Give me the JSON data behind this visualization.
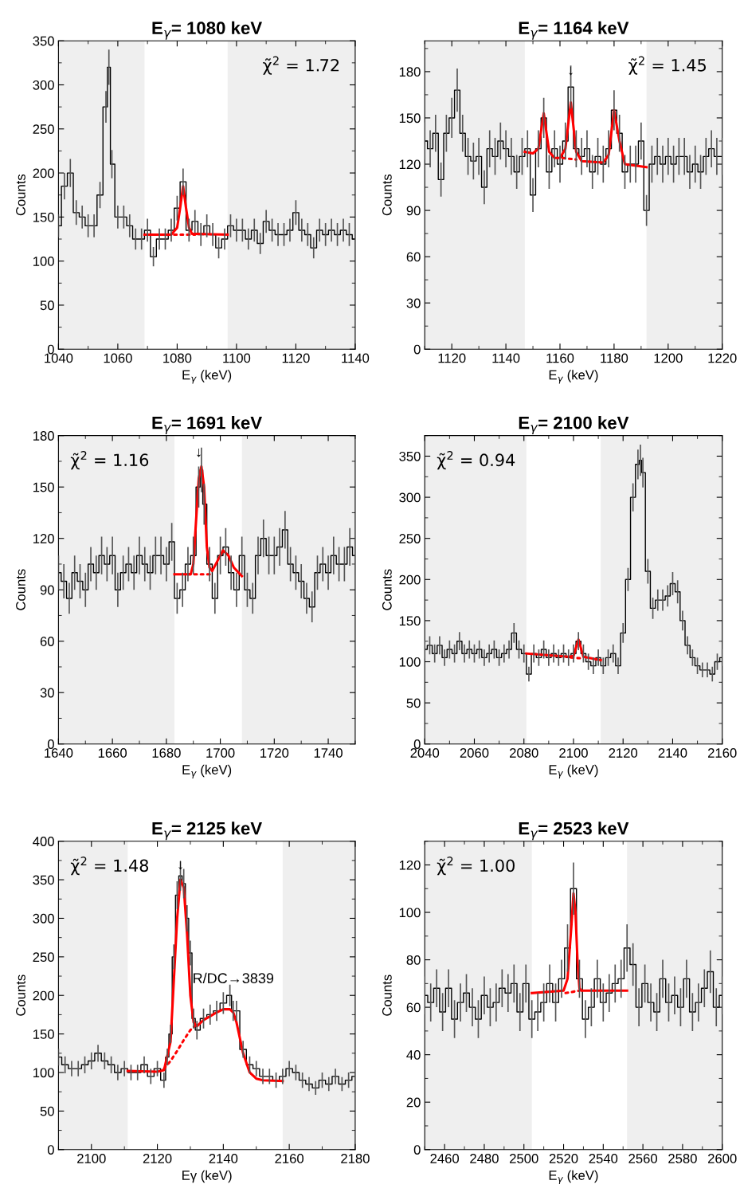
{
  "chart_data": [
    {
      "type": "step",
      "title": "E$_{γ}$= 1080 keV",
      "xlabel": "E$_{γ}$ (keV)",
      "ylabel": "Counts",
      "xlim": [
        1040,
        1140
      ],
      "ylim": [
        0,
        350
      ],
      "xticks": [
        1040,
        1060,
        1080,
        1100,
        1120,
        1140
      ],
      "yticks": [
        0,
        50,
        100,
        150,
        200,
        250,
        300,
        350
      ],
      "bands": [
        {
          "axis": "x",
          "from": 1040,
          "to": 1069,
          "color": "#efefef"
        },
        {
          "axis": "x",
          "from": 1097,
          "to": 1140,
          "color": "#efefef"
        }
      ],
      "annotations": [
        "χ̃$^{2}$ = 1.72"
      ],
      "series": [
        {
          "color": "#000000",
          "x": [
            1040,
            1042,
            1044,
            1046,
            1048,
            1050,
            1052,
            1054,
            1056,
            1057,
            1058,
            1060,
            1062,
            1064,
            1066,
            1068,
            1070,
            1072,
            1074,
            1076,
            1078,
            1080,
            1082,
            1084,
            1086,
            1088,
            1090,
            1092,
            1094,
            1096,
            1098,
            1100,
            1102,
            1104,
            1106,
            1108,
            1110,
            1112,
            1114,
            1116,
            1118,
            1120,
            1122,
            1124,
            1126,
            1128,
            1130,
            1132,
            1134,
            1136,
            1138,
            1140
          ],
          "values": [
            140,
            185,
            200,
            155,
            150,
            140,
            140,
            175,
            275,
            320,
            210,
            150,
            150,
            140,
            125,
            125,
            135,
            105,
            125,
            125,
            135,
            160,
            190,
            135,
            145,
            130,
            140,
            130,
            115,
            125,
            140,
            135,
            135,
            125,
            135,
            120,
            145,
            135,
            130,
            130,
            135,
            155,
            135,
            130,
            115,
            135,
            130,
            135,
            130,
            135,
            130,
            125
          ],
          "errors": [
            13,
            15,
            16,
            14,
            13,
            13,
            13,
            15,
            18,
            20,
            16,
            13,
            13,
            13,
            12,
            12,
            13,
            11,
            12,
            12,
            13,
            14,
            15,
            13,
            13,
            13,
            13,
            13,
            12,
            12,
            13,
            13,
            13,
            12,
            13,
            12,
            13,
            13,
            13,
            13,
            13,
            14,
            13,
            13,
            12,
            13,
            13,
            13,
            13,
            13,
            13,
            12
          ]
        },
        {
          "type": "line",
          "color": "#ff0000",
          "x": [
            1069,
            1078,
            1080,
            1081,
            1082,
            1083,
            1084,
            1085,
            1097
          ],
          "values": [
            130,
            130,
            138,
            160,
            185,
            160,
            138,
            131,
            130
          ]
        },
        {
          "type": "line",
          "color": "#ff0000",
          "line_style": "dotted",
          "x": [
            1079,
            1086
          ],
          "values": [
            130,
            130
          ]
        }
      ]
    },
    {
      "type": "step",
      "title": "E$_{γ}$= 1164 keV",
      "xlabel": "E$_{γ}$ (keV)",
      "ylabel": "Counts",
      "xlim": [
        1110,
        1220
      ],
      "ylim": [
        0,
        200
      ],
      "xticks": [
        1120,
        1140,
        1160,
        1180,
        1200,
        1220
      ],
      "yticks": [
        0,
        30,
        60,
        90,
        120,
        150,
        180
      ],
      "bands": [
        {
          "axis": "x",
          "from": 1110,
          "to": 1147,
          "color": "#efefef"
        },
        {
          "axis": "x",
          "from": 1192,
          "to": 1220,
          "color": "#efefef"
        }
      ],
      "annotations": [
        "χ̃$^{2}$ = 1.45",
        {
          "text": "↓",
          "x": 1164,
          "y": 176
        }
      ],
      "series": [
        {
          "color": "#000000",
          "x": [
            1110,
            1112,
            1114,
            1116,
            1118,
            1120,
            1122,
            1124,
            1126,
            1128,
            1130,
            1132,
            1134,
            1136,
            1138,
            1140,
            1142,
            1144,
            1146,
            1148,
            1150,
            1152,
            1154,
            1156,
            1158,
            1160,
            1162,
            1164,
            1166,
            1168,
            1170,
            1172,
            1174,
            1176,
            1178,
            1180,
            1182,
            1184,
            1186,
            1188,
            1190,
            1192,
            1194,
            1196,
            1198,
            1200,
            1202,
            1204,
            1206,
            1208,
            1210,
            1212,
            1214,
            1216,
            1218,
            1220
          ],
          "values": [
            135,
            130,
            140,
            110,
            140,
            150,
            168,
            140,
            125,
            122,
            125,
            105,
            130,
            125,
            135,
            130,
            125,
            115,
            125,
            130,
            100,
            130,
            150,
            115,
            130,
            120,
            135,
            170,
            130,
            125,
            130,
            115,
            125,
            120,
            130,
            155,
            140,
            115,
            120,
            120,
            135,
            90,
            120,
            125,
            120,
            125,
            120,
            125,
            125,
            115,
            120,
            115,
            125,
            130,
            125,
            125
          ],
          "errors": [
            12,
            12,
            12,
            11,
            12,
            13,
            14,
            12,
            12,
            12,
            12,
            11,
            12,
            12,
            12,
            12,
            12,
            11,
            12,
            12,
            11,
            12,
            13,
            11,
            12,
            12,
            12,
            14,
            12,
            12,
            12,
            11,
            12,
            12,
            12,
            13,
            12,
            11,
            12,
            12,
            12,
            10,
            12,
            12,
            12,
            12,
            12,
            12,
            12,
            11,
            12,
            11,
            12,
            12,
            12,
            12
          ]
        },
        {
          "type": "line",
          "color": "#ff0000",
          "x": [
            1147,
            1150,
            1152,
            1154,
            1156,
            1158,
            1160,
            1162,
            1164,
            1166,
            1168,
            1176,
            1178,
            1180,
            1182,
            1184,
            1192
          ],
          "values": [
            128,
            127,
            130,
            153,
            128,
            124,
            124,
            130,
            160,
            128,
            122,
            121,
            126,
            155,
            135,
            120,
            118
          ]
        },
        {
          "type": "line",
          "color": "#ff0000",
          "line_style": "dotted",
          "x": [
            1161,
            1166
          ],
          "values": [
            124,
            123
          ]
        }
      ]
    },
    {
      "type": "step",
      "title": "E$_{γ}$= 1691 keV",
      "xlabel": "E$_{γ}$ (keV)",
      "ylabel": "Counts",
      "xlim": [
        1640,
        1750
      ],
      "ylim": [
        0,
        180
      ],
      "xticks": [
        1640,
        1660,
        1680,
        1700,
        1720,
        1740
      ],
      "yticks": [
        0,
        30,
        60,
        90,
        120,
        150,
        180
      ],
      "bands": [
        {
          "axis": "x",
          "from": 1640,
          "to": 1683,
          "color": "#efefef"
        },
        {
          "axis": "x",
          "from": 1708,
          "to": 1750,
          "color": "#efefef"
        }
      ],
      "annotations": [
        "χ̃$^{2}$ = 1.16",
        {
          "text": "↓",
          "x": 1692,
          "y": 166
        }
      ],
      "series": [
        {
          "color": "#000000",
          "x": [
            1640,
            1642,
            1644,
            1646,
            1648,
            1650,
            1652,
            1654,
            1656,
            1658,
            1660,
            1662,
            1664,
            1666,
            1668,
            1670,
            1672,
            1674,
            1676,
            1678,
            1680,
            1682,
            1684,
            1686,
            1688,
            1690,
            1692,
            1693,
            1694,
            1696,
            1698,
            1700,
            1702,
            1704,
            1706,
            1708,
            1710,
            1712,
            1714,
            1716,
            1718,
            1720,
            1722,
            1724,
            1726,
            1728,
            1730,
            1732,
            1734,
            1736,
            1738,
            1740,
            1742,
            1744,
            1746,
            1748,
            1750
          ],
          "values": [
            100,
            95,
            85,
            100,
            95,
            90,
            105,
            100,
            110,
            105,
            110,
            90,
            100,
            105,
            100,
            110,
            105,
            100,
            110,
            110,
            105,
            118,
            85,
            90,
            105,
            110,
            150,
            160,
            140,
            105,
            85,
            110,
            115,
            100,
            90,
            110,
            90,
            85,
            110,
            120,
            110,
            110,
            115,
            125,
            105,
            100,
            95,
            85,
            80,
            100,
            105,
            100,
            110,
            105,
            105,
            115,
            110
          ],
          "errors": [
            10,
            10,
            9,
            10,
            10,
            10,
            10,
            10,
            11,
            10,
            11,
            10,
            10,
            10,
            10,
            11,
            10,
            10,
            11,
            11,
            10,
            11,
            9,
            10,
            10,
            11,
            12,
            13,
            12,
            10,
            9,
            11,
            11,
            10,
            10,
            11,
            10,
            9,
            11,
            11,
            11,
            11,
            11,
            11,
            10,
            10,
            10,
            9,
            9,
            10,
            10,
            10,
            11,
            10,
            10,
            11,
            11
          ]
        },
        {
          "type": "line",
          "color": "#ff0000",
          "x": [
            1683,
            1689,
            1690,
            1691,
            1692,
            1693,
            1694,
            1695,
            1696,
            1697,
            1699,
            1701,
            1703,
            1705,
            1708
          ],
          "values": [
            99,
            99,
            105,
            130,
            155,
            162,
            150,
            115,
            103,
            101,
            107,
            113,
            110,
            103,
            98
          ]
        },
        {
          "type": "line",
          "color": "#ff0000",
          "line_style": "dotted",
          "x": [
            1688,
            1697
          ],
          "values": [
            99,
            99
          ]
        }
      ]
    },
    {
      "type": "step",
      "title": "E$_{γ}$= 2100 keV",
      "xlabel": "E$_{γ}$ (keV)",
      "ylabel": "Counts",
      "xlim": [
        2040,
        2160
      ],
      "ylim": [
        0,
        375
      ],
      "xticks": [
        2040,
        2060,
        2080,
        2100,
        2120,
        2140,
        2160
      ],
      "yticks": [
        0,
        50,
        100,
        150,
        200,
        250,
        300,
        350
      ],
      "bands": [
        {
          "axis": "x",
          "from": 2040,
          "to": 2081,
          "color": "#efefef"
        },
        {
          "axis": "x",
          "from": 2111,
          "to": 2160,
          "color": "#efefef"
        }
      ],
      "annotations": [
        "χ̃$^{2}$ = 0.94"
      ],
      "series": [
        {
          "color": "#000000",
          "x": [
            2040,
            2042,
            2044,
            2046,
            2048,
            2050,
            2052,
            2054,
            2056,
            2058,
            2060,
            2062,
            2064,
            2066,
            2068,
            2070,
            2072,
            2074,
            2076,
            2078,
            2080,
            2082,
            2084,
            2086,
            2088,
            2090,
            2092,
            2094,
            2096,
            2098,
            2100,
            2102,
            2104,
            2106,
            2108,
            2110,
            2112,
            2114,
            2116,
            2118,
            2120,
            2122,
            2124,
            2126,
            2127,
            2128,
            2130,
            2132,
            2134,
            2136,
            2138,
            2140,
            2142,
            2144,
            2146,
            2148,
            2150,
            2152,
            2154,
            2156,
            2158,
            2160
          ],
          "values": [
            115,
            120,
            110,
            120,
            105,
            115,
            110,
            125,
            110,
            115,
            110,
            115,
            105,
            110,
            115,
            105,
            110,
            115,
            135,
            115,
            110,
            85,
            110,
            105,
            115,
            105,
            110,
            105,
            110,
            105,
            110,
            125,
            110,
            100,
            95,
            105,
            95,
            105,
            110,
            95,
            135,
            200,
            300,
            340,
            345,
            330,
            210,
            165,
            175,
            175,
            180,
            195,
            185,
            150,
            120,
            105,
            95,
            90,
            90,
            85,
            100,
            105
          ],
          "errors": [
            11,
            11,
            11,
            11,
            10,
            11,
            11,
            11,
            11,
            11,
            11,
            11,
            10,
            11,
            11,
            10,
            11,
            11,
            12,
            11,
            11,
            9,
            11,
            10,
            11,
            10,
            11,
            10,
            11,
            10,
            11,
            11,
            11,
            10,
            10,
            10,
            10,
            10,
            11,
            10,
            12,
            14,
            17,
            18,
            19,
            18,
            15,
            13,
            13,
            13,
            13,
            14,
            14,
            12,
            11,
            10,
            10,
            9,
            9,
            9,
            10,
            10
          ]
        },
        {
          "type": "line",
          "color": "#ff0000",
          "x": [
            2081,
            2098,
            2100,
            2102,
            2104,
            2111
          ],
          "values": [
            110,
            106,
            107,
            127,
            106,
            102
          ]
        },
        {
          "type": "line",
          "color": "#ff0000",
          "line_style": "dotted",
          "x": [
            2099,
            2104
          ],
          "values": [
            105,
            104
          ]
        }
      ]
    },
    {
      "type": "step",
      "title": "E$_{γ}$= 2125 keV",
      "xlabel": "Eγ (keV)",
      "ylabel": "Counts",
      "xlim": [
        2090,
        2180
      ],
      "ylim": [
        0,
        400
      ],
      "xticks": [
        2100,
        2120,
        2140,
        2160,
        2180
      ],
      "yticks": [
        0,
        50,
        100,
        150,
        200,
        250,
        300,
        350,
        400
      ],
      "bands": [
        {
          "axis": "x",
          "from": 2090,
          "to": 2111,
          "color": "#efefef"
        },
        {
          "axis": "x",
          "from": 2158,
          "to": 2180,
          "color": "#efefef"
        }
      ],
      "annotations": [
        "χ̃$^{2}$ = 1.48",
        {
          "text": "↓",
          "x": 2127,
          "y": 360
        },
        {
          "text": "R/DC→3839",
          "x": 2143,
          "y": 212
        }
      ],
      "series": [
        {
          "color": "#000000",
          "x": [
            2090,
            2092,
            2094,
            2096,
            2098,
            2100,
            2102,
            2104,
            2106,
            2108,
            2110,
            2112,
            2114,
            2116,
            2118,
            2120,
            2122,
            2123,
            2124,
            2125,
            2126,
            2127,
            2128,
            2129,
            2130,
            2131,
            2132,
            2134,
            2136,
            2138,
            2140,
            2142,
            2143,
            2144,
            2146,
            2148,
            2150,
            2152,
            2154,
            2156,
            2158,
            2160,
            2162,
            2164,
            2166,
            2168,
            2170,
            2172,
            2174,
            2176,
            2178,
            2180
          ],
          "values": [
            120,
            110,
            105,
            105,
            110,
            115,
            125,
            115,
            110,
            100,
            105,
            100,
            100,
            110,
            95,
            105,
            90,
            120,
            150,
            250,
            330,
            355,
            345,
            300,
            255,
            170,
            155,
            170,
            175,
            180,
            190,
            200,
            180,
            180,
            130,
            110,
            105,
            95,
            95,
            90,
            95,
            105,
            100,
            90,
            85,
            80,
            90,
            85,
            95,
            85,
            90,
            95
          ],
          "errors": [
            11,
            11,
            10,
            10,
            11,
            11,
            11,
            11,
            11,
            10,
            10,
            10,
            10,
            11,
            10,
            10,
            10,
            11,
            12,
            16,
            18,
            19,
            19,
            17,
            16,
            13,
            12,
            13,
            13,
            13,
            14,
            14,
            13,
            13,
            11,
            11,
            10,
            10,
            10,
            10,
            10,
            10,
            10,
            10,
            9,
            9,
            10,
            9,
            10,
            9,
            10,
            10
          ]
        },
        {
          "type": "line",
          "color": "#ff0000",
          "x": [
            2111,
            2120,
            2122,
            2124,
            2125,
            2126,
            2127,
            2128,
            2129,
            2130,
            2131,
            2132,
            2134,
            2136,
            2138,
            2140,
            2142,
            2143,
            2144,
            2146,
            2148,
            2150,
            2152,
            2158
          ],
          "values": [
            102,
            101,
            103,
            140,
            220,
            300,
            350,
            340,
            280,
            200,
            165,
            160,
            168,
            173,
            178,
            182,
            182,
            178,
            165,
            125,
            100,
            92,
            90,
            89
          ]
        },
        {
          "type": "line",
          "color": "#ff0000",
          "line_style": "dotted",
          "x": [
            2122,
            2124,
            2126,
            2128,
            2130,
            2132
          ],
          "values": [
            105,
            115,
            128,
            142,
            155,
            163
          ]
        }
      ]
    },
    {
      "type": "step",
      "title": "E$_{γ}$= 2523 keV",
      "xlabel": "E$_{γ}$ (keV)",
      "ylabel": "Counts",
      "xlim": [
        2450,
        2600
      ],
      "ylim": [
        0,
        130
      ],
      "xticks": [
        2460,
        2480,
        2500,
        2520,
        2540,
        2560,
        2580,
        2600
      ],
      "yticks": [
        0,
        20,
        40,
        60,
        80,
        100,
        120
      ],
      "bands": [
        {
          "axis": "x",
          "from": 2450,
          "to": 2504,
          "color": "#efefef"
        },
        {
          "axis": "x",
          "from": 2552,
          "to": 2600,
          "color": "#efefef"
        }
      ],
      "annotations": [
        "χ̃$^{2}$ = 1.00"
      ],
      "series": [
        {
          "color": "#000000",
          "x": [
            2450,
            2453,
            2456,
            2459,
            2462,
            2465,
            2468,
            2471,
            2474,
            2477,
            2480,
            2483,
            2486,
            2489,
            2492,
            2495,
            2498,
            2501,
            2504,
            2507,
            2510,
            2513,
            2516,
            2519,
            2522,
            2525,
            2528,
            2531,
            2534,
            2537,
            2540,
            2543,
            2546,
            2549,
            2552,
            2555,
            2558,
            2561,
            2564,
            2567,
            2570,
            2573,
            2576,
            2579,
            2582,
            2585,
            2588,
            2591,
            2594,
            2597,
            2600
          ],
          "values": [
            65,
            62,
            68,
            58,
            68,
            55,
            62,
            66,
            60,
            55,
            65,
            60,
            62,
            68,
            66,
            70,
            58,
            70,
            55,
            58,
            62,
            70,
            62,
            72,
            85,
            110,
            72,
            55,
            60,
            72,
            62,
            66,
            70,
            72,
            85,
            78,
            60,
            70,
            62,
            58,
            72,
            62,
            65,
            60,
            72,
            58,
            62,
            68,
            75,
            60,
            65
          ],
          "errors": [
            8,
            8,
            8,
            8,
            8,
            8,
            8,
            8,
            8,
            8,
            8,
            8,
            8,
            8,
            8,
            8,
            8,
            8,
            8,
            8,
            8,
            8,
            8,
            8,
            10,
            11,
            8,
            8,
            8,
            8,
            8,
            8,
            8,
            8,
            10,
            9,
            8,
            8,
            8,
            8,
            8,
            8,
            8,
            8,
            8,
            8,
            8,
            8,
            9,
            8,
            8
          ]
        },
        {
          "type": "line",
          "color": "#ff0000",
          "x": [
            2504,
            2520,
            2522,
            2524,
            2525,
            2526,
            2527,
            2528,
            2529,
            2552
          ],
          "values": [
            66,
            67,
            72,
            95,
            108,
            100,
            80,
            68,
            67,
            67
          ]
        },
        {
          "type": "line",
          "color": "#ff0000",
          "line_style": "dotted",
          "x": [
            2521,
            2528
          ],
          "values": [
            66,
            67
          ]
        }
      ]
    }
  ]
}
